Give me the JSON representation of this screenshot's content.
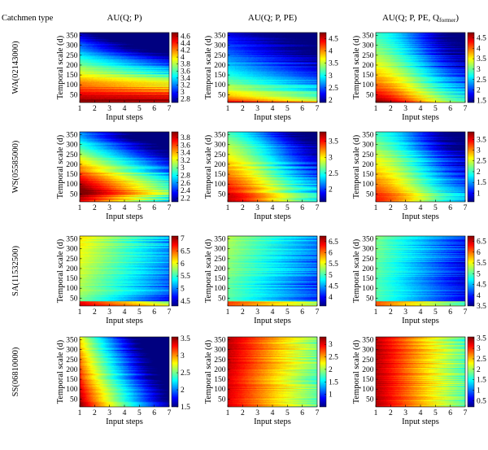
{
  "figure": {
    "row_header": "Catchmen type",
    "col_titles": [
      {
        "main": "AU(Q; P)",
        "sub": ""
      },
      {
        "main": "AU(Q; P, PE)",
        "sub": ""
      },
      {
        "main": "AU(Q; P, PE, Q",
        "sub": "former",
        "tail": ")"
      }
    ],
    "row_labels": [
      "WA(02143000)",
      "WS(05585000)",
      "SA(11532500)",
      "SS(06810000)"
    ]
  },
  "chart_data": {
    "type": "heatmap",
    "xlabel": "Input steps",
    "ylabel": "Temporal scale (d)",
    "x_ticks": [
      1,
      2,
      3,
      4,
      5,
      6,
      7
    ],
    "y_ticks": [
      50,
      100,
      150,
      200,
      250,
      300,
      350
    ],
    "xlim": [
      1,
      7
    ],
    "ylim": [
      10,
      365
    ],
    "colormap": "jet",
    "panels": [
      {
        "row": "WA(02143000)",
        "column": "AU(Q; P)",
        "clim": [
          2.7,
          4.7
        ],
        "colorbar_ticks": [
          "2.8",
          "3",
          "3.2",
          "3.4",
          "3.6",
          "3.8",
          "4",
          "4.2",
          "4.4",
          "4.6"
        ]
      },
      {
        "row": "WA(02143000)",
        "column": "AU(Q; P, PE)",
        "clim": [
          1.9,
          4.75
        ],
        "colorbar_ticks": [
          "2",
          "2.5",
          "3",
          "3.5",
          "4",
          "4.5"
        ]
      },
      {
        "row": "WA(02143000)",
        "column": "AU(Q; P, PE, Qformer)",
        "clim": [
          1.4,
          4.75
        ],
        "colorbar_ticks": [
          "1.5",
          "2",
          "2.5",
          "3",
          "3.5",
          "4",
          "4.5"
        ]
      },
      {
        "row": "WS(05585000)",
        "column": "AU(Q; P)",
        "clim": [
          2.1,
          3.95
        ],
        "colorbar_ticks": [
          "2.2",
          "2.4",
          "2.6",
          "2.8",
          "3",
          "3.2",
          "3.4",
          "3.6",
          "3.8"
        ]
      },
      {
        "row": "WS(05585000)",
        "column": "AU(Q; P, PE)",
        "clim": [
          1.6,
          3.8
        ],
        "colorbar_ticks": [
          "2",
          "2.5",
          "3",
          "3.5"
        ]
      },
      {
        "row": "WS(05585000)",
        "column": "AU(Q; P, PE, Qformer)",
        "clim": [
          0.6,
          3.85
        ],
        "colorbar_ticks": [
          "1",
          "1.5",
          "2",
          "2.5",
          "3",
          "3.5"
        ]
      },
      {
        "row": "SA(11532500)",
        "column": "AU(Q; P)",
        "clim": [
          4.3,
          7.1
        ],
        "colorbar_ticks": [
          "4.5",
          "5",
          "5.5",
          "6",
          "6.5",
          "7"
        ]
      },
      {
        "row": "SA(11532500)",
        "column": "AU(Q; P, PE)",
        "clim": [
          3.6,
          6.75
        ],
        "colorbar_ticks": [
          "4",
          "4.5",
          "5",
          "5.5",
          "6",
          "6.5"
        ]
      },
      {
        "row": "SA(11532500)",
        "column": "AU(Q; P, PE, Qformer)",
        "clim": [
          3.5,
          6.75
        ],
        "colorbar_ticks": [
          "3.5",
          "4",
          "4.5",
          "5",
          "5.5",
          "6",
          "6.5"
        ]
      },
      {
        "row": "SS(06810000)",
        "column": "AU(Q; P)",
        "clim": [
          1.5,
          3.55
        ],
        "colorbar_ticks": [
          "1.5",
          "2",
          "2.5",
          "3",
          "3.5"
        ]
      },
      {
        "row": "SS(06810000)",
        "column": "AU(Q; P, PE)",
        "clim": [
          0.5,
          3.3
        ],
        "colorbar_ticks": [
          "1",
          "1.5",
          "2",
          "2.5",
          "3"
        ]
      },
      {
        "row": "SS(06810000)",
        "column": "AU(Q; P, PE, Qformer)",
        "clim": [
          0.2,
          3.55
        ],
        "colorbar_ticks": [
          "0.5",
          "1",
          "1.5",
          "2",
          "2.5",
          "3",
          "3.5"
        ]
      }
    ]
  }
}
